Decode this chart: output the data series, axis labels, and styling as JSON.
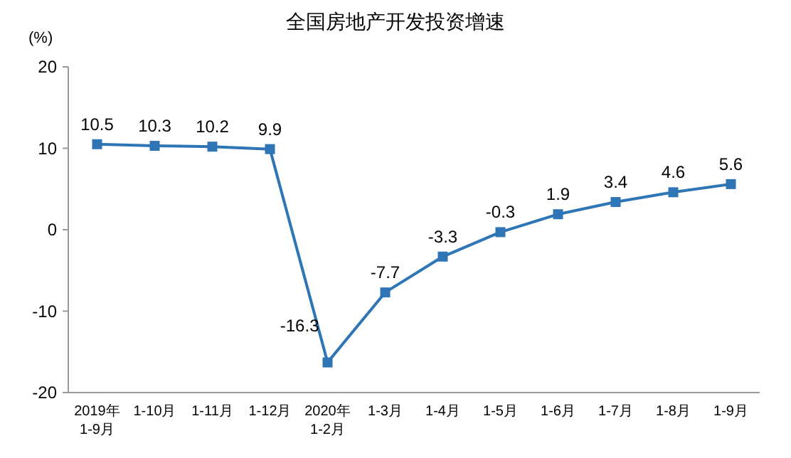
{
  "chart_data": {
    "type": "line",
    "title": "全国房地产开发投资增速",
    "ylabel": "(%)",
    "categories": [
      "2019年\n1-9月",
      "1-10月",
      "1-11月",
      "1-12月",
      "2020年\n1-2月",
      "1-3月",
      "1-4月",
      "1-5月",
      "1-6月",
      "1-7月",
      "1-8月",
      "1-9月"
    ],
    "series": [
      {
        "color": "#2e75b6",
        "values": [
          10.5,
          10.3,
          10.2,
          9.9,
          -16.3,
          -7.7,
          -3.3,
          -0.3,
          1.9,
          3.4,
          4.6,
          5.6
        ]
      }
    ],
    "ylim": [
      -20,
      20
    ],
    "yticks": [
      -20,
      -10,
      0,
      10,
      20
    ],
    "marker": "square",
    "data_labels": true,
    "grid": false
  }
}
